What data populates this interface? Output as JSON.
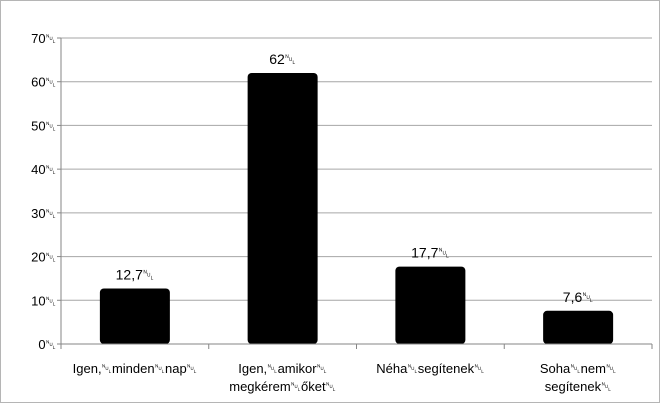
{
  "chart_data": {
    "type": "bar",
    "categories": [
      [
        "Igen,␀minden␀nap␀"
      ],
      [
        "Igen,␀amikor␀",
        "megkérem␀őket␀"
      ],
      [
        "Néha␀segítenek␀"
      ],
      [
        "Soha␀nem␀",
        "segítenek␀"
      ]
    ],
    "values": [
      12.7,
      62,
      17.7,
      7.6
    ],
    "value_labels": [
      "12,7␀",
      "62␀",
      "17,7␀",
      "7,6␀"
    ],
    "y_ticks": [
      0,
      10,
      20,
      30,
      40,
      50,
      60,
      70
    ],
    "y_tick_labels": [
      "0␀",
      "10␀",
      "20␀",
      "30␀",
      "40␀",
      "50␀",
      "60␀",
      "70␀"
    ],
    "ylim": [
      0,
      70
    ],
    "grid": true,
    "legend": "none",
    "bar_color": "#000000",
    "grid_color": "#a6a6a6",
    "axis_color": "#868686"
  }
}
